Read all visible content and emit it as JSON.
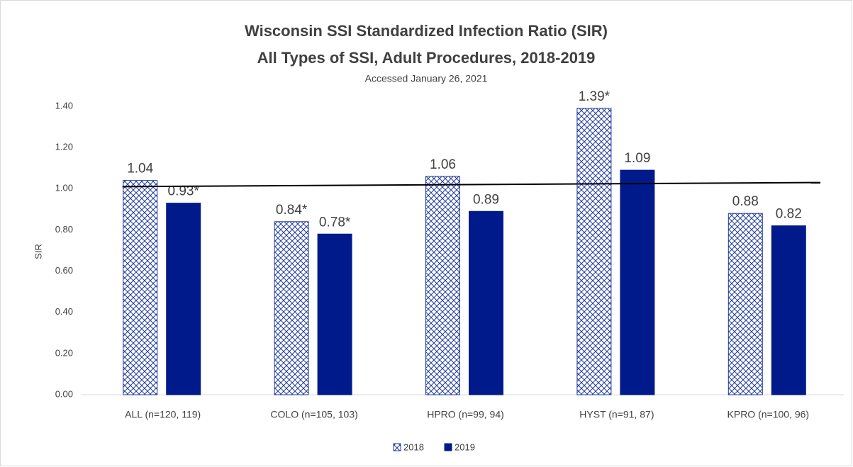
{
  "chart_data": {
    "type": "bar",
    "title": "Wisconsin SSI Standardized Infection Ratio (SIR)",
    "subtitle": "All Types of SSI, Adult Procedures, 2018-2019",
    "note": "Accessed January 26, 2021",
    "y_label": "SIR",
    "categories": [
      "ALL (n=120, 119)",
      "COLO (n=105, 103)",
      "HPRO (n=99, 94)",
      "HYST (n=91, 87)",
      "KPRO (n=100, 96)"
    ],
    "series": [
      {
        "name": "2018",
        "color": "#1f3a9c",
        "pattern": "crosshatch",
        "values": [
          1.04,
          0.84,
          1.06,
          1.39,
          0.88
        ],
        "value_labels": [
          "1.04",
          "0.84*",
          "1.06",
          "1.39*",
          "0.88"
        ]
      },
      {
        "name": "2019",
        "color": "#001a8c",
        "values": [
          0.93,
          0.78,
          0.89,
          1.09,
          0.82
        ],
        "value_labels": [
          "0.93*",
          "0.78*",
          "0.89",
          "1.09",
          "0.82"
        ]
      }
    ],
    "reference_line": [
      1.01,
      1.03
    ],
    "ylim": [
      0,
      1.4
    ],
    "yticks": [
      {
        "value": 0,
        "label": "0.00"
      },
      {
        "value": 0.2,
        "label": "0.20"
      },
      {
        "value": 0.4,
        "label": "0.40"
      },
      {
        "value": 0.6,
        "label": "0.60"
      },
      {
        "value": 0.8,
        "label": "0.80"
      },
      {
        "value": 1.0,
        "label": "1.00"
      },
      {
        "value": 1.2,
        "label": "1.20"
      },
      {
        "value": 1.4,
        "label": "1.40"
      }
    ],
    "grid": false,
    "legend": "bottom"
  }
}
